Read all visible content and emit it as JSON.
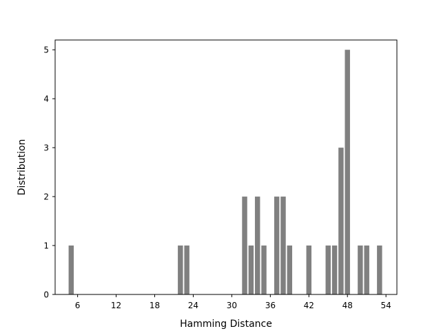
{
  "chart_data": {
    "type": "bar",
    "title": "",
    "xlabel": "Hamming Distance",
    "ylabel": "Distribution",
    "bar_color": "#808080",
    "x": [
      5,
      22,
      23,
      32,
      33,
      34,
      35,
      37,
      38,
      39,
      42,
      45,
      46,
      47,
      48,
      50,
      51,
      53
    ],
    "values": [
      1,
      1,
      1,
      2,
      1,
      2,
      1,
      2,
      2,
      1,
      1,
      1,
      1,
      3,
      5,
      1,
      1,
      1
    ],
    "xlim": [
      2.5,
      55.7
    ],
    "ylim": [
      0,
      5.2
    ],
    "xticks": [
      6,
      12,
      18,
      24,
      30,
      36,
      42,
      48,
      54
    ],
    "yticks": [
      0,
      1,
      2,
      3,
      4,
      5
    ],
    "grid": false,
    "legend": "none"
  }
}
